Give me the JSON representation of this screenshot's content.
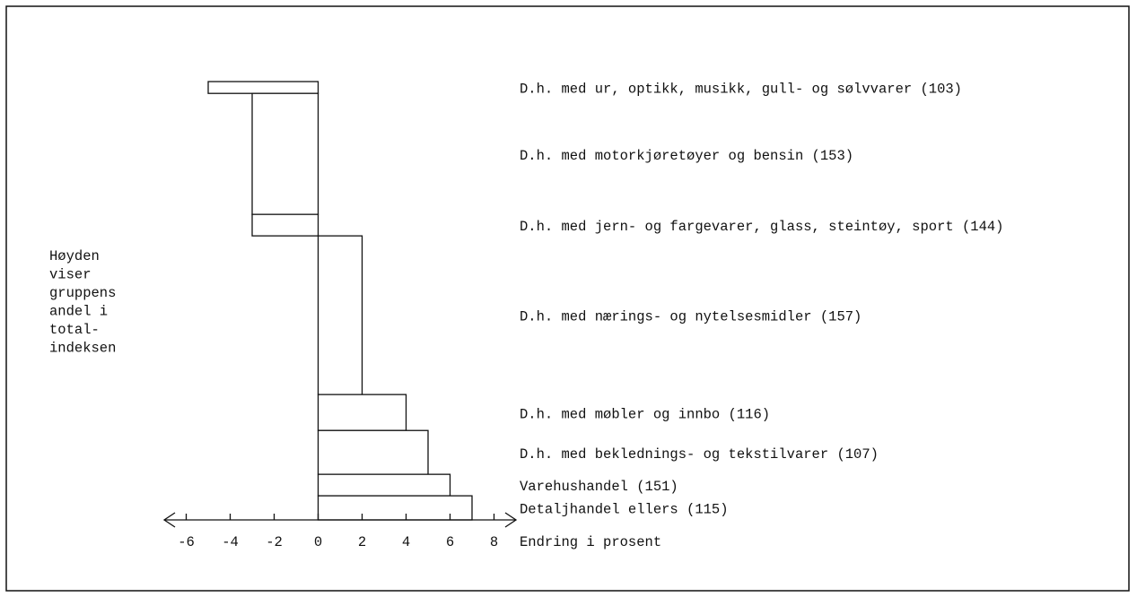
{
  "chart_data": {
    "type": "bar",
    "categories": [
      "D.h. med ur, optikk, musikk, gull- og sølvvarer (103)",
      "D.h. med motorkjøretøyer og bensin (153)",
      "D.h. med jern- og fargevarer, glass, steintøy, sport (144)",
      "D.h. med nærings- og nytelsesmidler (157)",
      "D.h. med møbler og innbo (116)",
      "D.h. med beklednings- og tekstilvarer (107)",
      "Varehushandel (151)",
      "Detaljhandel ellers (115)"
    ],
    "values": [
      -5,
      -3,
      -3,
      2,
      4,
      5,
      6,
      7
    ],
    "shares": [
      2.7,
      27.6,
      4.9,
      36.2,
      8.2,
      10.0,
      4.9,
      5.5
    ],
    "xlim": [
      -7,
      9
    ],
    "xticks": [
      -6,
      -4,
      -2,
      0,
      2,
      4,
      6,
      8
    ],
    "x_label": "Endring i prosent",
    "y_note": [
      "Høyden",
      "viser",
      "gruppens",
      "andel i",
      "total-",
      "indeksen"
    ]
  }
}
